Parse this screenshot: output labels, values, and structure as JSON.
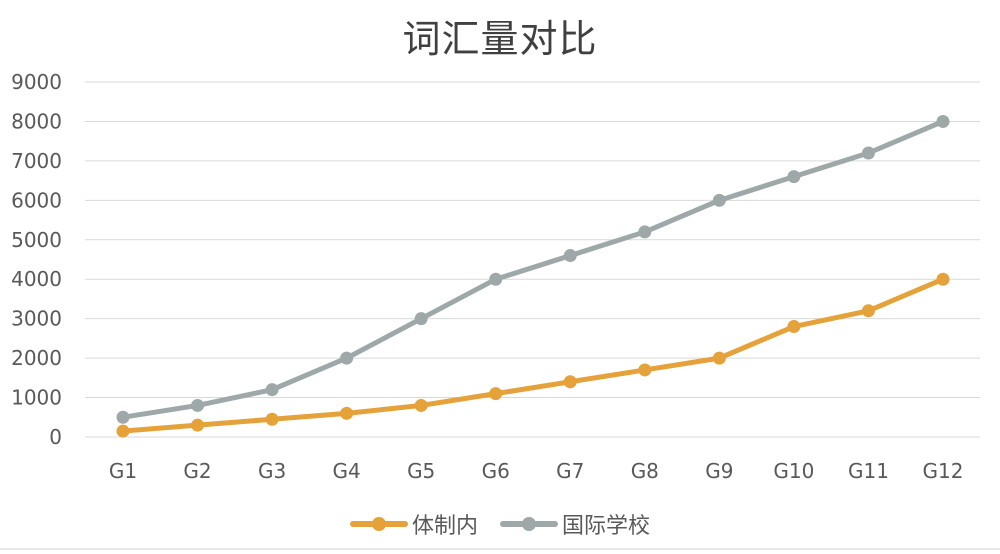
{
  "chart_data": {
    "type": "line",
    "title": "词汇量对比",
    "xlabel": "",
    "ylabel": "",
    "categories": [
      "G1",
      "G2",
      "G3",
      "G4",
      "G5",
      "G6",
      "G7",
      "G8",
      "G9",
      "G10",
      "G11",
      "G12"
    ],
    "series": [
      {
        "name": "体制内",
        "color": "#E5A23A",
        "values": [
          150,
          300,
          450,
          600,
          800,
          1100,
          1400,
          1700,
          2000,
          2800,
          3200,
          4000
        ]
      },
      {
        "name": "国际学校",
        "color": "#9EA8A8",
        "values": [
          500,
          800,
          1200,
          2000,
          3000,
          4000,
          4600,
          5200,
          6000,
          6600,
          7200,
          8000
        ]
      }
    ],
    "yticks": [
      0,
      1000,
      2000,
      3000,
      4000,
      5000,
      6000,
      7000,
      8000,
      9000
    ],
    "ylim": [
      0,
      9000
    ],
    "grid": true,
    "legend_position": "bottom"
  },
  "legend": [
    {
      "label": "体制内",
      "color": "#E5A23A"
    },
    {
      "label": "国际学校",
      "color": "#9EA8A8"
    }
  ]
}
